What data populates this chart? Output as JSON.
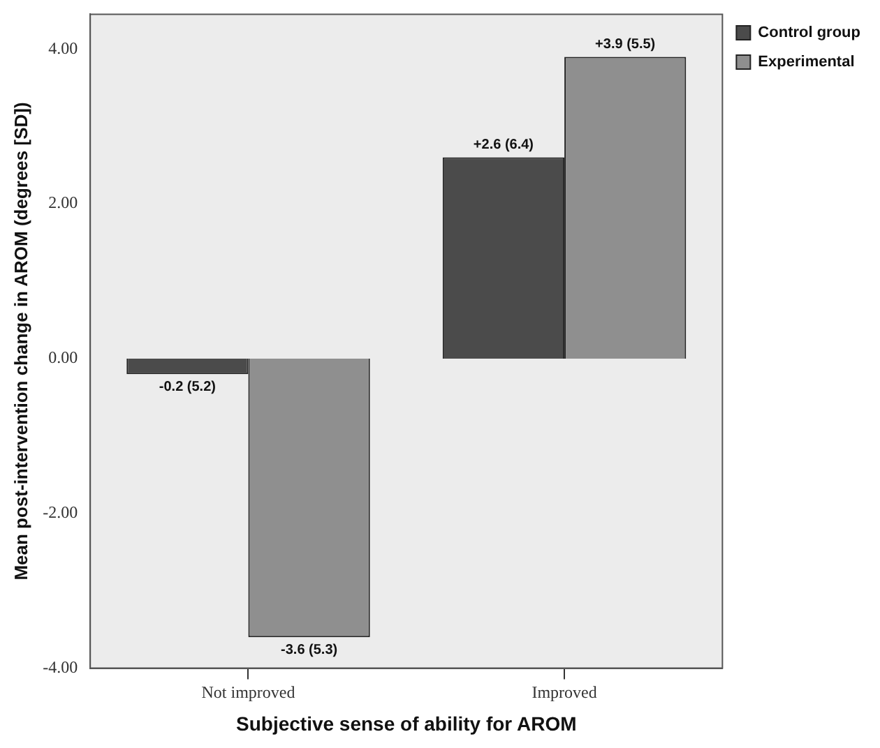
{
  "chart_data": {
    "type": "bar",
    "xlabel": "Subjective sense of ability for AROM",
    "ylabel": "Mean post-intervention change in AROM (degrees [SD])",
    "categories": [
      "Not improved",
      "Improved"
    ],
    "series": [
      {
        "name": "Control group",
        "color": "#4b4b4b",
        "values": [
          -0.2,
          2.6
        ],
        "value_labels": [
          "-0.2 (5.2)",
          "+2.6 (6.4)"
        ]
      },
      {
        "name": "Experimental",
        "color": "#8f8f8f",
        "values": [
          -3.6,
          3.9
        ],
        "value_labels": [
          "-3.6 (5.3)",
          "+3.9 (5.5)"
        ]
      }
    ],
    "ylim": [
      -4,
      4.45
    ],
    "yticks": [
      {
        "value": -4,
        "label": "-4.00"
      },
      {
        "value": -2,
        "label": "-2.00"
      },
      {
        "value": 0,
        "label": "0.00"
      },
      {
        "value": 2,
        "label": "2.00"
      },
      {
        "value": 4,
        "label": "4.00"
      }
    ],
    "grid": false,
    "legend": "top right"
  }
}
